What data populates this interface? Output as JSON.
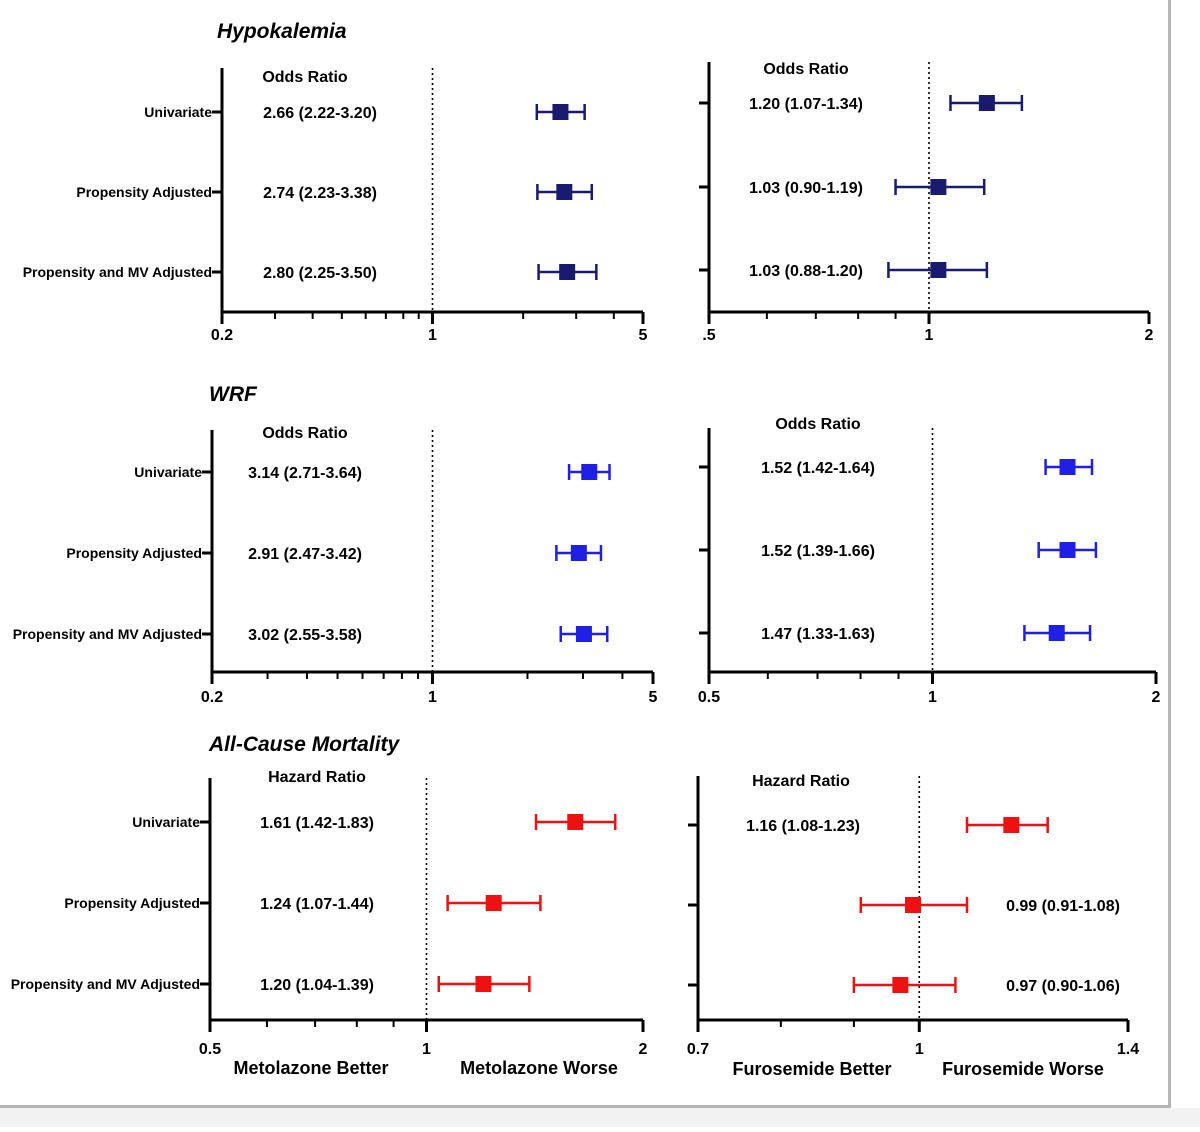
{
  "sections": [
    {
      "title": "Hypokalemia"
    },
    {
      "title": "WRF"
    },
    {
      "title": "All-Cause Mortality"
    }
  ],
  "row_labels": [
    "Univariate",
    "Propensity Adjusted",
    "Propensity and MV Adjusted"
  ],
  "footer": {
    "left_better": "Metolazone Better",
    "left_worse": "Metolazone Worse",
    "right_better": "Furosemide Better",
    "right_worse": "Furosemide Worse"
  },
  "colors": {
    "hypokalemia": "#1a1a6e",
    "wrf": "#1f1fe6",
    "mortality": "#ee1111"
  },
  "chart_data": [
    {
      "type": "forest",
      "section": "Hypokalemia",
      "panel": "left",
      "ratio_label": "Odds Ratio",
      "xscale": "log",
      "xlim": [
        0.2,
        5
      ],
      "ticks": [
        {
          "v": 0.2,
          "label": "0.2"
        },
        {
          "v": 1,
          "label": "1"
        },
        {
          "v": 5,
          "label": "5"
        }
      ],
      "reference": 1,
      "color": "#1a1a6e",
      "rows": [
        {
          "label": "Univariate",
          "est": 2.66,
          "lo": 2.22,
          "hi": 3.2,
          "text": "2.66 (2.22-3.20)"
        },
        {
          "label": "Propensity Adjusted",
          "est": 2.74,
          "lo": 2.23,
          "hi": 3.38,
          "text": "2.74 (2.23-3.38)"
        },
        {
          "label": "Propensity and MV Adjusted",
          "est": 2.8,
          "lo": 2.25,
          "hi": 3.5,
          "text": "2.80 (2.25-3.50)"
        }
      ]
    },
    {
      "type": "forest",
      "section": "Hypokalemia",
      "panel": "right",
      "ratio_label": "Odds Ratio",
      "xscale": "log",
      "xlim": [
        0.5,
        2
      ],
      "ticks": [
        {
          "v": 0.5,
          "label": ".5"
        },
        {
          "v": 1,
          "label": "1"
        },
        {
          "v": 2,
          "label": "2"
        }
      ],
      "reference": 1,
      "color": "#1a1a6e",
      "rows": [
        {
          "est": 1.2,
          "lo": 1.07,
          "hi": 1.34,
          "text": "1.20 (1.07-1.34)"
        },
        {
          "est": 1.03,
          "lo": 0.9,
          "hi": 1.19,
          "text": "1.03 (0.90-1.19)"
        },
        {
          "est": 1.03,
          "lo": 0.88,
          "hi": 1.2,
          "text": "1.03 (0.88-1.20)"
        }
      ]
    },
    {
      "type": "forest",
      "section": "WRF",
      "panel": "left",
      "ratio_label": "Odds Ratio",
      "xscale": "log",
      "xlim": [
        0.2,
        5
      ],
      "ticks": [
        {
          "v": 0.2,
          "label": "0.2"
        },
        {
          "v": 1,
          "label": "1"
        },
        {
          "v": 5,
          "label": "5"
        }
      ],
      "reference": 1,
      "color": "#1f1fe6",
      "rows": [
        {
          "label": "Univariate",
          "est": 3.14,
          "lo": 2.71,
          "hi": 3.64,
          "text": "3.14 (2.71-3.64)"
        },
        {
          "label": "Propensity Adjusted",
          "est": 2.91,
          "lo": 2.47,
          "hi": 3.42,
          "text": "2.91 (2.47-3.42)"
        },
        {
          "label": "Propensity and MV Adjusted",
          "est": 3.02,
          "lo": 2.55,
          "hi": 3.58,
          "text": "3.02 (2.55-3.58)"
        }
      ]
    },
    {
      "type": "forest",
      "section": "WRF",
      "panel": "right",
      "ratio_label": "Odds Ratio",
      "xscale": "log",
      "xlim": [
        0.5,
        2
      ],
      "ticks": [
        {
          "v": 0.5,
          "label": "0.5"
        },
        {
          "v": 1,
          "label": "1"
        },
        {
          "v": 2,
          "label": "2"
        }
      ],
      "reference": 1,
      "color": "#1f1fe6",
      "rows": [
        {
          "est": 1.52,
          "lo": 1.42,
          "hi": 1.64,
          "text": "1.52 (1.42-1.64)"
        },
        {
          "est": 1.52,
          "lo": 1.39,
          "hi": 1.66,
          "text": "1.52 (1.39-1.66)"
        },
        {
          "est": 1.47,
          "lo": 1.33,
          "hi": 1.63,
          "text": "1.47 (1.33-1.63)"
        }
      ]
    },
    {
      "type": "forest",
      "section": "All-Cause Mortality",
      "panel": "left",
      "ratio_label": "Hazard Ratio",
      "xscale": "log",
      "xlim": [
        0.5,
        2
      ],
      "ticks": [
        {
          "v": 0.5,
          "label": "0.5"
        },
        {
          "v": 1,
          "label": "1"
        },
        {
          "v": 2,
          "label": "2"
        }
      ],
      "reference": 1,
      "color": "#ee1111",
      "rows": [
        {
          "label": "Univariate",
          "est": 1.61,
          "lo": 1.42,
          "hi": 1.83,
          "text": "1.61 (1.42-1.83)"
        },
        {
          "label": "Propensity Adjusted",
          "est": 1.24,
          "lo": 1.07,
          "hi": 1.44,
          "text": "1.24 (1.07-1.44)"
        },
        {
          "label": "Propensity and MV Adjusted",
          "est": 1.2,
          "lo": 1.04,
          "hi": 1.39,
          "text": "1.20 (1.04-1.39)"
        }
      ]
    },
    {
      "type": "forest",
      "section": "All-Cause Mortality",
      "panel": "right",
      "ratio_label": "Hazard  Ratio",
      "xscale": "log",
      "xlim": [
        0.7,
        1.4
      ],
      "ticks": [
        {
          "v": 0.7,
          "label": "0.7"
        },
        {
          "v": 1,
          "label": "1"
        },
        {
          "v": 1.4,
          "label": "1.4"
        }
      ],
      "reference": 1,
      "color": "#ee1111",
      "rows": [
        {
          "est": 1.16,
          "lo": 1.08,
          "hi": 1.23,
          "text": "1.16 (1.08-1.23)"
        },
        {
          "est": 0.99,
          "lo": 0.91,
          "hi": 1.08,
          "text": "0.99 (0.91-1.08)"
        },
        {
          "est": 0.97,
          "lo": 0.9,
          "hi": 1.06,
          "text": "0.97 (0.90-1.06)"
        }
      ]
    }
  ]
}
